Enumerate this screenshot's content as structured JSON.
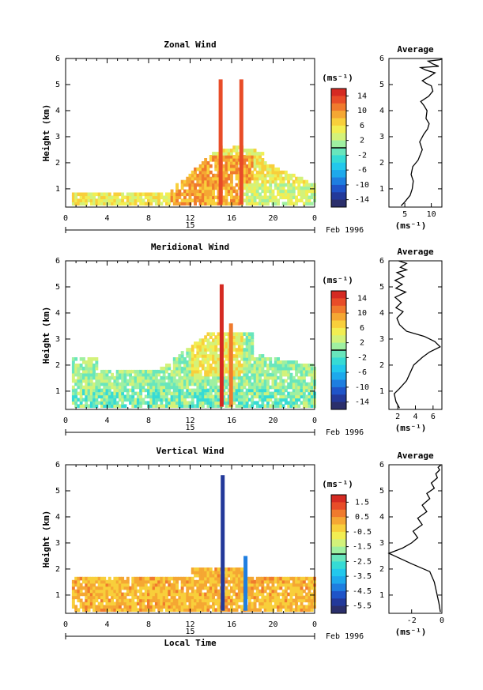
{
  "chart_data": [
    {
      "type": "heatmap",
      "title": "Zonal Wind",
      "ylabel": "Height (km)",
      "x_ticks": [
        "0",
        "4",
        "8",
        "12",
        "16",
        "20",
        "0"
      ],
      "y_ticks": [
        "1",
        "2",
        "3",
        "4",
        "5",
        "6"
      ],
      "xlim": [
        0,
        24
      ],
      "ylim": [
        0.3,
        6.0
      ],
      "date_label": "15",
      "month_label": "Feb 1996",
      "colorbar": {
        "label": "(ms⁻¹)",
        "ticks": [
          "14",
          "10",
          "6",
          "2",
          "-2",
          "-6",
          "-10",
          "-14"
        ],
        "range": [
          -16,
          16
        ]
      },
      "profile": {
        "type": "line",
        "title": "Average",
        "xlabel": "(ms⁻¹)",
        "x_ticks": [
          "5",
          "10"
        ],
        "y_ticks": [
          "1",
          "2",
          "3",
          "4",
          "5",
          "6"
        ],
        "xlim": [
          2,
          12
        ],
        "ylim": [
          0.3,
          6.0
        ],
        "x": [
          4.3,
          5.0,
          6.0,
          6.4,
          6.6,
          6.2,
          6.5,
          7.5,
          8.3,
          7.8,
          8.6,
          9.3,
          9.6,
          9.0,
          9.2,
          8.6,
          8.0,
          9.5,
          10.3,
          10.0,
          9.0,
          8.3,
          9.6,
          10.7,
          9.0,
          8.0,
          11.4,
          10.2,
          9.4,
          11.6,
          12.0,
          12.0
        ],
        "y": [
          0.35,
          0.5,
          0.75,
          1.0,
          1.3,
          1.55,
          1.85,
          2.1,
          2.5,
          2.8,
          3.1,
          3.3,
          3.5,
          3.7,
          4.0,
          4.2,
          4.35,
          4.55,
          4.75,
          4.95,
          5.05,
          5.15,
          5.3,
          5.45,
          5.55,
          5.65,
          5.7,
          5.8,
          5.9,
          5.95,
          5.98,
          6.0
        ]
      }
    },
    {
      "type": "heatmap",
      "title": "Meridional Wind",
      "ylabel": "Height (km)",
      "x_ticks": [
        "0",
        "4",
        "8",
        "12",
        "16",
        "20",
        "0"
      ],
      "y_ticks": [
        "1",
        "2",
        "3",
        "4",
        "5",
        "6"
      ],
      "xlim": [
        0,
        24
      ],
      "ylim": [
        0.3,
        6.0
      ],
      "date_label": "15",
      "month_label": "Feb 1996",
      "colorbar": {
        "label": "(ms⁻¹)",
        "ticks": [
          "14",
          "10",
          "6",
          "2",
          "-2",
          "-6",
          "-10",
          "-14"
        ],
        "range": [
          -16,
          16
        ]
      },
      "profile": {
        "type": "line",
        "title": "Average",
        "xlabel": "(ms⁻¹)",
        "x_ticks": [
          "2",
          "4",
          "6"
        ],
        "y_ticks": [
          "1",
          "2",
          "3",
          "4",
          "5",
          "6"
        ],
        "xlim": [
          1,
          7
        ],
        "ylim": [
          0.3,
          6.0
        ],
        "x": [
          2.2,
          1.8,
          1.6,
          2.2,
          3.0,
          3.4,
          3.8,
          4.8,
          5.6,
          6.8,
          6.2,
          5.0,
          3.0,
          2.2,
          1.9,
          2.6,
          1.8,
          2.4,
          1.7,
          2.9,
          1.8,
          2.5,
          1.7,
          2.7,
          1.9,
          3.0,
          2.3,
          3.0,
          2.1
        ],
        "y": [
          0.35,
          0.6,
          0.9,
          1.1,
          1.4,
          1.7,
          2.0,
          2.3,
          2.5,
          2.7,
          2.9,
          3.1,
          3.3,
          3.55,
          3.8,
          4.05,
          4.2,
          4.4,
          4.6,
          4.8,
          4.95,
          5.1,
          5.25,
          5.4,
          5.55,
          5.65,
          5.75,
          5.9,
          6.0
        ]
      }
    },
    {
      "type": "heatmap",
      "title": "Vertical Wind",
      "ylabel": "Height (km)",
      "xlabel": "Local Time",
      "x_ticks": [
        "0",
        "4",
        "8",
        "12",
        "16",
        "20",
        "0"
      ],
      "y_ticks": [
        "1",
        "2",
        "3",
        "4",
        "5",
        "6"
      ],
      "xlim": [
        0,
        24
      ],
      "ylim": [
        0.3,
        6.0
      ],
      "date_label": "15",
      "month_label": "Feb 1996",
      "colorbar": {
        "label": "(ms⁻¹)",
        "ticks": [
          "1.5",
          "0.5",
          "-0.5",
          "-1.5",
          "-2.5",
          "-3.5",
          "-4.5",
          "-5.5"
        ],
        "range": [
          -6,
          2
        ]
      },
      "profile": {
        "type": "line",
        "title": "Average",
        "xlabel": "(ms⁻¹)",
        "x_ticks": [
          "-2",
          "0"
        ],
        "y_ticks": [
          "1",
          "2",
          "3",
          "4",
          "5",
          "6"
        ],
        "xlim": [
          -3.5,
          0
        ],
        "ylim": [
          0.3,
          6.0
        ],
        "x": [
          -0.1,
          -0.2,
          -0.35,
          -0.5,
          -0.8,
          -2.0,
          -3.5,
          -2.6,
          -2.0,
          -1.6,
          -1.9,
          -1.3,
          -1.6,
          -1.0,
          -1.3,
          -0.8,
          -1.0,
          -0.5,
          -0.7,
          -0.3,
          -0.4,
          -0.15,
          -0.25,
          -0.05
        ],
        "y": [
          0.35,
          0.7,
          1.1,
          1.5,
          1.9,
          2.2,
          2.6,
          2.8,
          3.0,
          3.2,
          3.45,
          3.7,
          3.95,
          4.2,
          4.45,
          4.7,
          4.9,
          5.1,
          5.3,
          5.5,
          5.65,
          5.8,
          5.9,
          6.0
        ]
      }
    }
  ],
  "colors": {
    "scale": [
      "#2b2f6b",
      "#23399a",
      "#1f54c8",
      "#1e7ee0",
      "#1da9ec",
      "#22c8ec",
      "#36dbd5",
      "#68e6bc",
      "#9ff0a1",
      "#d3f27a",
      "#f2ee52",
      "#f8cf3b",
      "#f5a733",
      "#f07a2d",
      "#e84c28",
      "#d52a22"
    ]
  }
}
